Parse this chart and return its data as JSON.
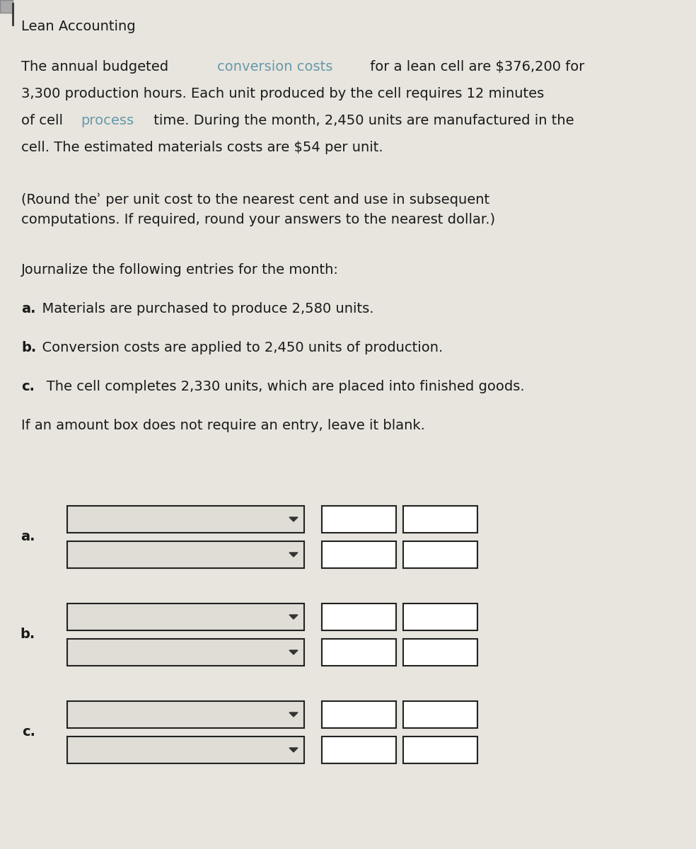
{
  "background_color": "#e8e5de",
  "content_bg": "#f0ede8",
  "title": "Lean Accounting",
  "body_fontsize": 14,
  "title_fontsize": 14,
  "box_fill": "#f5f3ef",
  "box_fill_white": "#ffffff",
  "box_edge": "#222222",
  "dropdown_fill": "#e0ddd6",
  "label_a": "a.",
  "label_b": "b.",
  "label_c": "c.",
  "lines_p1": [
    [
      [
        "The annual budgeted ",
        "#1a1a1a",
        false
      ],
      [
        "conversion costs",
        "#6699aa",
        false
      ],
      [
        " for a lean cell are $376,200 for",
        "#1a1a1a",
        false
      ]
    ],
    [
      [
        "3,300 production hours. Each unit produced by the cell requires 12 minutes",
        "#1a1a1a",
        false
      ]
    ],
    [
      [
        "of cell ",
        "#1a1a1a",
        false
      ],
      [
        "process",
        "#6699aa",
        false
      ],
      [
        " time. During the month, 2,450 units are manufactured in the",
        "#1a1a1a",
        false
      ]
    ],
    [
      [
        "cell. The estimated materials costs are $54 per unit.",
        "#1a1a1a",
        false
      ]
    ]
  ],
  "paragraph2": "(Round theʾ per unit cost to the nearest cent and use in subsequent\ncomputations. If required, round your answers to the nearest dollar.)",
  "paragraph3": "Journalize the following entries for the month:",
  "item_a_bold": "a.",
  "item_a_text": "  Materials are purchased to produce 2,580 units.",
  "item_b_bold": "b.",
  "item_b_text": "  Conversion costs are applied to 2,450 units of production.",
  "item_c_bold": "c.",
  "item_c_text": "   The cell completes 2,330 units, which are placed into finished goods.",
  "note": "If an amount box does not require an entry, leave it blank."
}
